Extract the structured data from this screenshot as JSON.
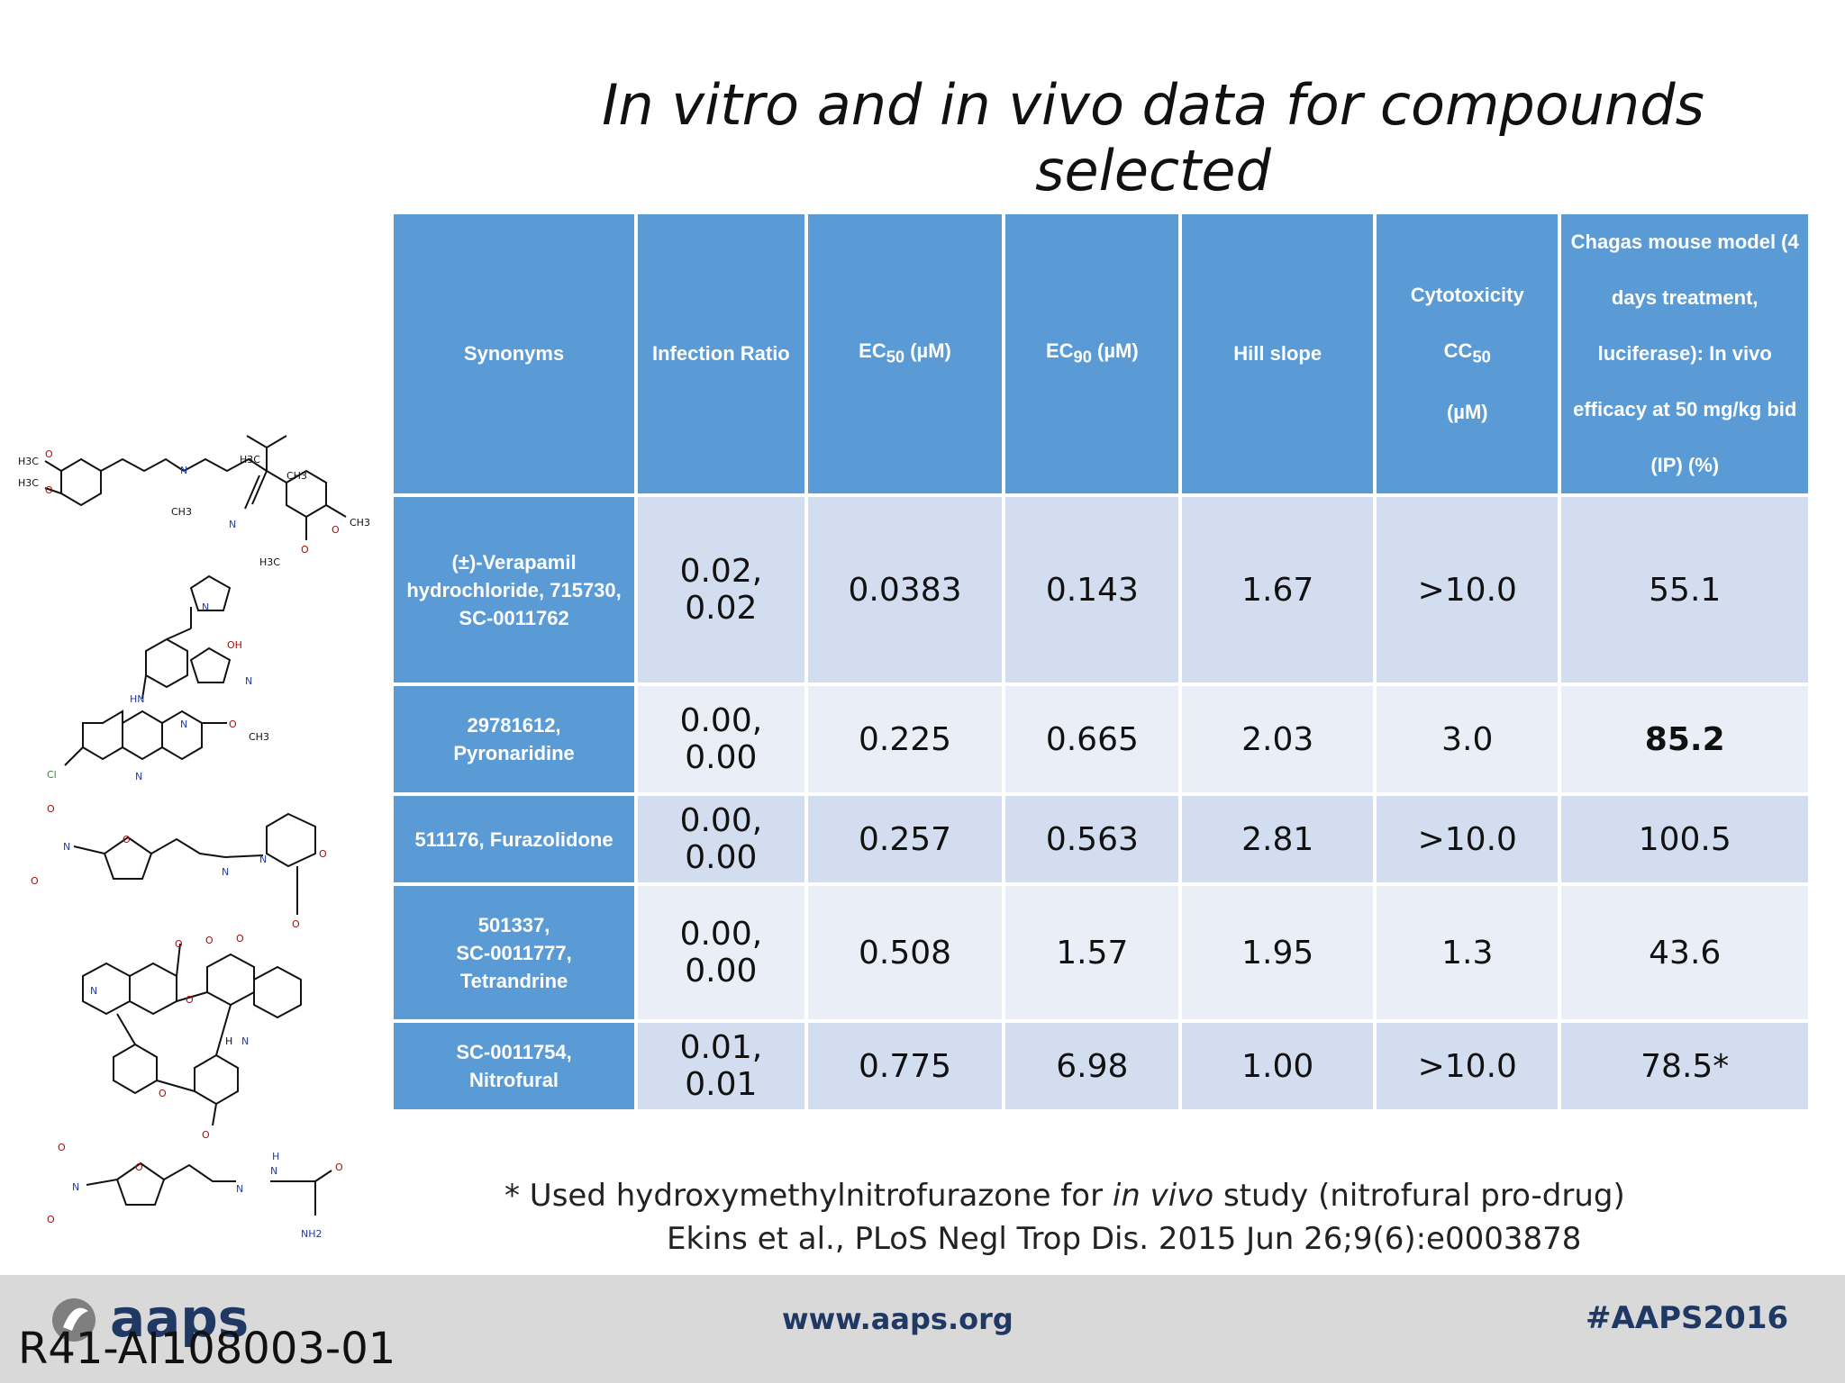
{
  "title": "In vitro and in vivo data for compounds selected",
  "table": {
    "headers": {
      "synonyms": "Synonyms",
      "infection_ratio": "Infection Ratio",
      "ec50": {
        "pre": "EC",
        "sub": "50",
        "post": " (µM)"
      },
      "ec90": {
        "pre": "EC",
        "sub": "90",
        "post": " (µM)"
      },
      "hill": "Hill slope",
      "cc50": {
        "pre": "Cytotoxicity CC",
        "sub": "50",
        "post": "(µM)"
      },
      "chagas": "Chagas mouse model (4 days treatment, luciferase): In vivo efficacy at 50 mg/kg bid (IP) (%)"
    },
    "rows": [
      {
        "synonyms": [
          "(±)-Verapamil",
          "hydrochloride, 715730,",
          "SC-0011762"
        ],
        "infection_ratio": "0.02, 0.02",
        "ec50": "0.0383",
        "ec90": "0.143",
        "hill": "1.67",
        "cc50": ">10.0",
        "chagas": "55.1"
      },
      {
        "synonyms": [
          "29781612,",
          "Pyronaridine"
        ],
        "infection_ratio": "0.00, 0.00",
        "ec50": "0.225",
        "ec90": "0.665",
        "hill": "2.03",
        "cc50": "3.0",
        "chagas": "85.2"
      },
      {
        "synonyms": [
          "511176, Furazolidone"
        ],
        "infection_ratio": "0.00, 0.00",
        "ec50": "0.257",
        "ec90": "0.563",
        "hill": "2.81",
        "cc50": ">10.0",
        "chagas": "100.5"
      },
      {
        "synonyms": [
          "501337,",
          "SC-0011777,",
          "Tetrandrine"
        ],
        "infection_ratio": "0.00, 0.00",
        "ec50": "0.508",
        "ec90": "1.57",
        "hill": "1.95",
        "cc50": "1.3",
        "chagas": "43.6"
      },
      {
        "synonyms": [
          "SC-0011754,",
          "Nitrofural"
        ],
        "infection_ratio": "0.01, 0.01",
        "ec50": "0.775",
        "ec90": "6.98",
        "hill": "1.00",
        "cc50": ">10.0",
        "chagas": "78.5*"
      }
    ]
  },
  "footnote": {
    "pre": "* Used hydroxymethylnitrofurazone for ",
    "italic": "in vivo",
    "post": " study (nitrofural pro-drug)"
  },
  "citation": "Ekins et al., PLoS Negl Trop Dis. 2015 Jun 26;9(6):e0003878",
  "footer": {
    "logo_text": "aaps",
    "website": "www.aaps.org",
    "hashtag": "#AAPS2016"
  },
  "grant_id": "R41-AI108003-01",
  "structures": [
    {
      "name": "verapamil",
      "labels": [
        "H3C",
        "O",
        "H3C",
        "O",
        "N",
        "CH3",
        "H3C",
        "CH3",
        "N",
        "O",
        "CH3",
        "H3C",
        "O"
      ]
    },
    {
      "name": "pyronaridine",
      "labels": [
        "N",
        "OH",
        "N",
        "HN",
        "N",
        "O",
        "CH3",
        "Cl",
        "N"
      ]
    },
    {
      "name": "furazolidone",
      "labels": [
        "O",
        "N",
        "O",
        "N",
        "N",
        "O",
        "O",
        "O"
      ]
    },
    {
      "name": "tetrandrine",
      "labels": [
        "O",
        "O",
        "O",
        "N",
        "O",
        "H",
        "N",
        "O",
        "O"
      ]
    },
    {
      "name": "nitrofural",
      "labels": [
        "O",
        "N",
        "O",
        "O",
        "N",
        "H",
        "N",
        "O",
        "NH2"
      ]
    }
  ],
  "colors": {
    "header_blue": "#5b9bd5",
    "row_dark": "#d2deef",
    "row_light": "#eaeff7",
    "footer_gray": "#d9d9d9",
    "brand_navy": "#1f3864"
  }
}
